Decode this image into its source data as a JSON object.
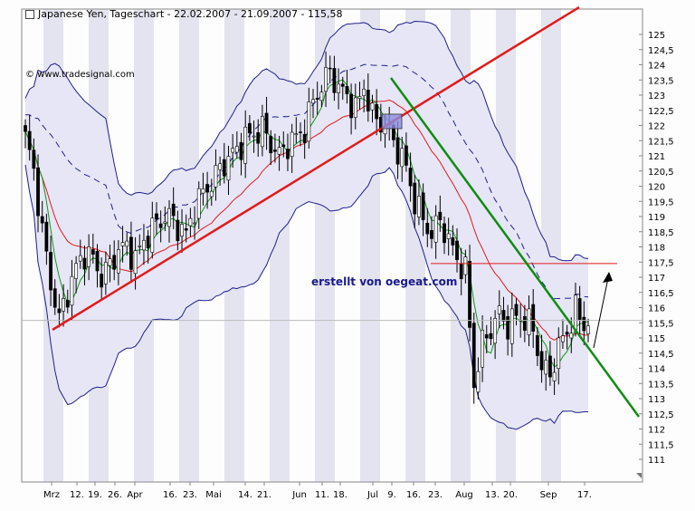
{
  "header": {
    "title": "Japanese Yen, Tageschart - 22.02.2007 - 21.09.2007 - 115,58",
    "copyright": "© www.tradesignal.com",
    "credit": "erstellt von oegeat.com"
  },
  "colors": {
    "trend_up": "#e21a1a",
    "trend_down": "#118c11",
    "price_line": "#000000",
    "bollinger": "#1f1f8c",
    "ma_fast": "#119911",
    "ma_slow": "#e21a1a",
    "band_fill": "#e6e6f6",
    "stripe": "#e4e4f0",
    "marker_box": "#8c8ce0"
  },
  "chart_data": {
    "type": "candlestick",
    "y_axis": {
      "min": 110.5,
      "max": 125.5,
      "position": "right",
      "ticks": [
        "125",
        "124,5",
        "124",
        "123,5",
        "123",
        "122,5",
        "122",
        "121,5",
        "121",
        "120,5",
        "120",
        "119,5",
        "119",
        "118,5",
        "118",
        "117,5",
        "117",
        "116,5",
        "116",
        "115,5",
        "115",
        "114,5",
        "114",
        "113,5",
        "113",
        "112,5",
        "112",
        "111,5",
        "111"
      ]
    },
    "x_axis": {
      "labels": [
        "Mrz",
        "12.",
        "19.",
        "26.",
        "Apr",
        "16.",
        "23.",
        "Mai",
        "14.",
        "21.",
        "Jun",
        "11.",
        "18.",
        "Jul",
        "9.",
        "16.",
        "23.",
        "Aug",
        "13.",
        "20.",
        "Sep",
        "17."
      ]
    },
    "last_price": 115.58,
    "horizontal_line": 117.45,
    "annotations": [
      "upward trendline",
      "downward trendline",
      "arrow up"
    ],
    "close_path": [
      [
        0,
        121.6
      ],
      [
        2,
        120.5
      ],
      [
        4,
        118.5
      ],
      [
        6,
        116.8
      ],
      [
        8,
        115.6
      ],
      [
        10,
        116.5
      ],
      [
        12,
        117.3
      ],
      [
        14,
        117.8
      ],
      [
        16,
        117.6
      ],
      [
        18,
        117.0
      ],
      [
        20,
        117.4
      ],
      [
        22,
        117.9
      ],
      [
        24,
        118.0
      ],
      [
        26,
        117.6
      ],
      [
        28,
        118.2
      ],
      [
        30,
        118.6
      ],
      [
        32,
        118.9
      ],
      [
        34,
        119.0
      ],
      [
        36,
        118.7
      ],
      [
        38,
        118.4
      ],
      [
        40,
        119.3
      ],
      [
        42,
        119.8
      ],
      [
        44,
        120.1
      ],
      [
        46,
        120.6
      ],
      [
        48,
        120.9
      ],
      [
        50,
        121.2
      ],
      [
        52,
        121.6
      ],
      [
        54,
        121.7
      ],
      [
        56,
        121.9
      ],
      [
        58,
        121.4
      ],
      [
        60,
        121.0
      ],
      [
        62,
        121.4
      ],
      [
        64,
        121.6
      ],
      [
        66,
        121.9
      ],
      [
        68,
        122.8
      ],
      [
        70,
        123.3
      ],
      [
        72,
        123.8
      ],
      [
        74,
        123.2
      ],
      [
        76,
        123.0
      ],
      [
        78,
        122.5
      ],
      [
        80,
        123.3
      ],
      [
        82,
        122.3
      ],
      [
        84,
        122.1
      ],
      [
        86,
        121.8
      ],
      [
        88,
        121.2
      ],
      [
        90,
        120.6
      ],
      [
        92,
        119.5
      ],
      [
        94,
        118.9
      ],
      [
        96,
        118.4
      ],
      [
        98,
        118.9
      ],
      [
        100,
        118.2
      ],
      [
        102,
        117.6
      ],
      [
        104,
        117.2
      ],
      [
        106,
        113.5
      ],
      [
        108,
        114.8
      ],
      [
        110,
        115.3
      ],
      [
        112,
        115.8
      ],
      [
        114,
        115.4
      ],
      [
        116,
        115.7
      ],
      [
        118,
        115.6
      ],
      [
        120,
        115.3
      ],
      [
        122,
        114.0
      ],
      [
        124,
        113.8
      ],
      [
        126,
        114.7
      ],
      [
        128,
        115.2
      ],
      [
        130,
        115.9
      ],
      [
        132,
        115.4
      ],
      [
        133,
        115.58
      ]
    ]
  }
}
